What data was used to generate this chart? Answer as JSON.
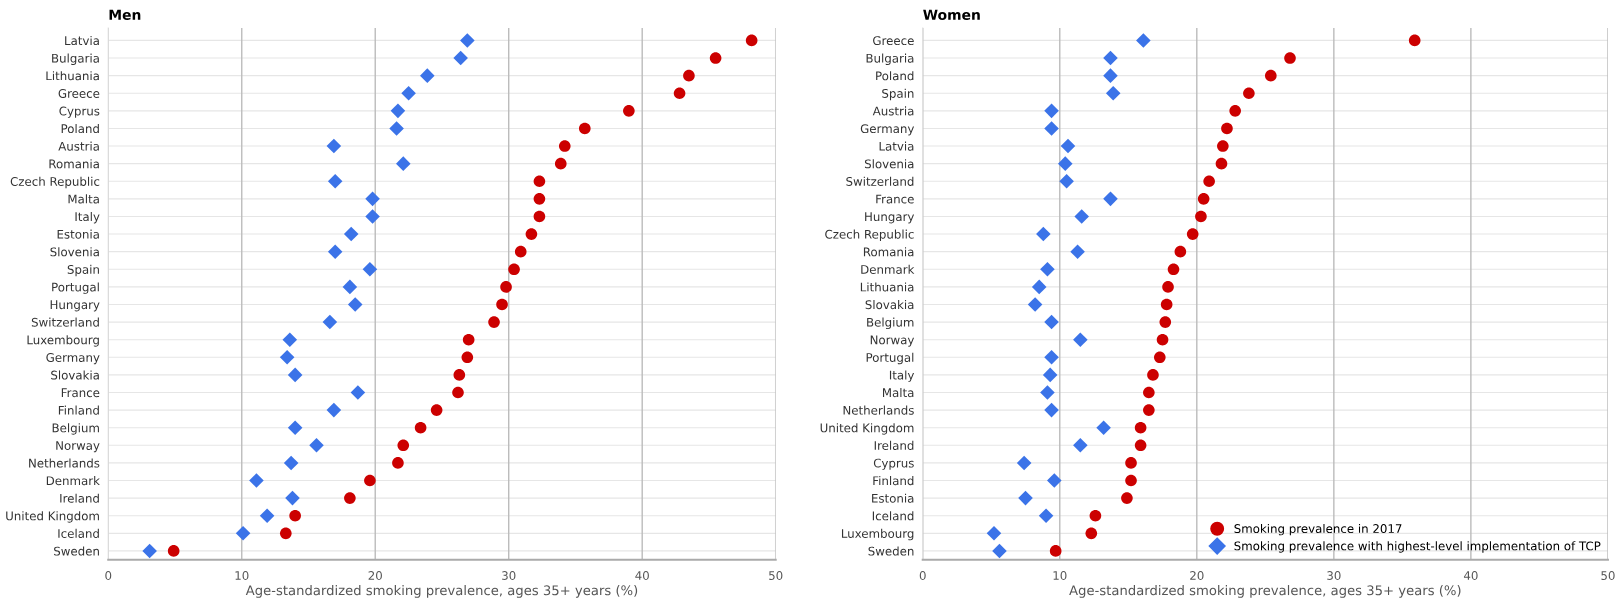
{
  "chart_data": [
    {
      "type": "scatter",
      "title": "Men",
      "xlabel": "Age-standardized smoking prevalence, ages 35+ years (%)",
      "orientation": "horizontal",
      "categories": [
        "Latvia",
        "Bulgaria",
        "Lithuania",
        "Greece",
        "Cyprus",
        "Poland",
        "Austria",
        "Romania",
        "Czech Republic",
        "Malta",
        "Italy",
        "Estonia",
        "Slovenia",
        "Spain",
        "Portugal",
        "Hungary",
        "Switzerland",
        "Luxembourg",
        "Germany",
        "Slovakia",
        "France",
        "Finland",
        "Belgium",
        "Norway",
        "Netherlands",
        "Denmark",
        "Ireland",
        "United Kingdom",
        "Iceland",
        "Sweden"
      ],
      "series": [
        {
          "color": "#cc0000",
          "marker": "circle",
          "values": [
            48.2,
            45.5,
            43.5,
            42.8,
            39.0,
            35.7,
            34.2,
            33.9,
            32.3,
            32.3,
            32.3,
            31.7,
            30.9,
            30.4,
            29.8,
            29.5,
            28.9,
            27.0,
            26.9,
            26.3,
            26.2,
            24.6,
            23.4,
            22.1,
            21.7,
            19.6,
            18.1,
            14.0,
            13.3,
            4.9
          ]
        },
        {
          "color": "#3b73e8",
          "marker": "diamond",
          "values": [
            26.9,
            26.4,
            23.9,
            22.5,
            21.7,
            21.6,
            16.9,
            22.1,
            17.0,
            19.8,
            19.8,
            18.2,
            17.0,
            19.6,
            18.1,
            18.5,
            16.6,
            13.6,
            13.4,
            14.0,
            18.7,
            16.9,
            14.0,
            15.6,
            13.7,
            11.1,
            13.8,
            11.9,
            10.1,
            3.1
          ]
        }
      ],
      "xlim": [
        0,
        50
      ],
      "xticks": [
        0,
        10,
        20,
        30,
        40,
        50
      ],
      "grid": true
    },
    {
      "type": "scatter",
      "title": "Women",
      "xlabel": "Age-standardized smoking prevalence, ages 35+ years (%)",
      "orientation": "horizontal",
      "categories": [
        "Greece",
        "Bulgaria",
        "Poland",
        "Spain",
        "Austria",
        "Germany",
        "Latvia",
        "Slovenia",
        "Switzerland",
        "France",
        "Hungary",
        "Czech Republic",
        "Romania",
        "Denmark",
        "Lithuania",
        "Slovakia",
        "Belgium",
        "Norway",
        "Portugal",
        "Italy",
        "Malta",
        "Netherlands",
        "United Kingdom",
        "Ireland",
        "Cyprus",
        "Finland",
        "Estonia",
        "Iceland",
        "Luxembourg",
        "Sweden"
      ],
      "series": [
        {
          "name": "Smoking prevalence in 2017",
          "color": "#cc0000",
          "marker": "circle",
          "values": [
            35.9,
            26.8,
            25.4,
            23.8,
            22.8,
            22.2,
            21.9,
            21.8,
            20.9,
            20.5,
            20.3,
            19.7,
            18.8,
            18.3,
            17.9,
            17.8,
            17.7,
            17.5,
            17.3,
            16.8,
            16.5,
            16.5,
            15.9,
            15.9,
            15.2,
            15.2,
            14.9,
            12.6,
            12.3,
            9.7
          ]
        },
        {
          "name": "Smoking prevalence with highest-level implementation of TCP",
          "color": "#3b73e8",
          "marker": "diamond",
          "values": [
            16.1,
            13.7,
            13.7,
            13.9,
            9.4,
            9.4,
            10.6,
            10.4,
            10.5,
            13.7,
            11.6,
            8.8,
            11.3,
            9.1,
            8.5,
            8.2,
            9.4,
            11.5,
            9.4,
            9.3,
            9.1,
            9.4,
            13.2,
            11.5,
            7.4,
            9.6,
            7.5,
            9.0,
            5.2,
            5.6
          ]
        }
      ],
      "xlim": [
        0,
        50
      ],
      "xticks": [
        0,
        10,
        20,
        30,
        40,
        50
      ],
      "grid": true,
      "legend": "bottom right"
    }
  ]
}
